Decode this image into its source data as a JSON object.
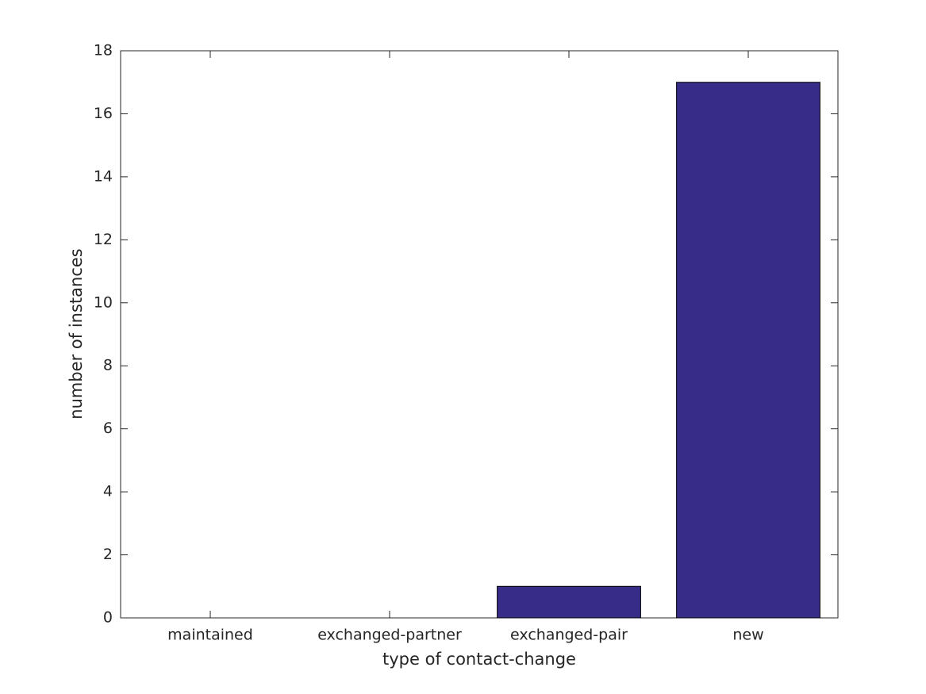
{
  "chart_data": {
    "type": "bar",
    "x_label": "type of contact-change",
    "y_label": "number of instances",
    "categories": [
      "maintained",
      "exchanged-partner",
      "exchanged-pair",
      "new"
    ],
    "values": [
      0,
      0,
      1,
      17
    ],
    "color": "#372c87",
    "ylim": [
      0,
      18
    ],
    "yticks": [
      0,
      2,
      4,
      6,
      8,
      10,
      12,
      14,
      16,
      18
    ],
    "grid": false
  }
}
